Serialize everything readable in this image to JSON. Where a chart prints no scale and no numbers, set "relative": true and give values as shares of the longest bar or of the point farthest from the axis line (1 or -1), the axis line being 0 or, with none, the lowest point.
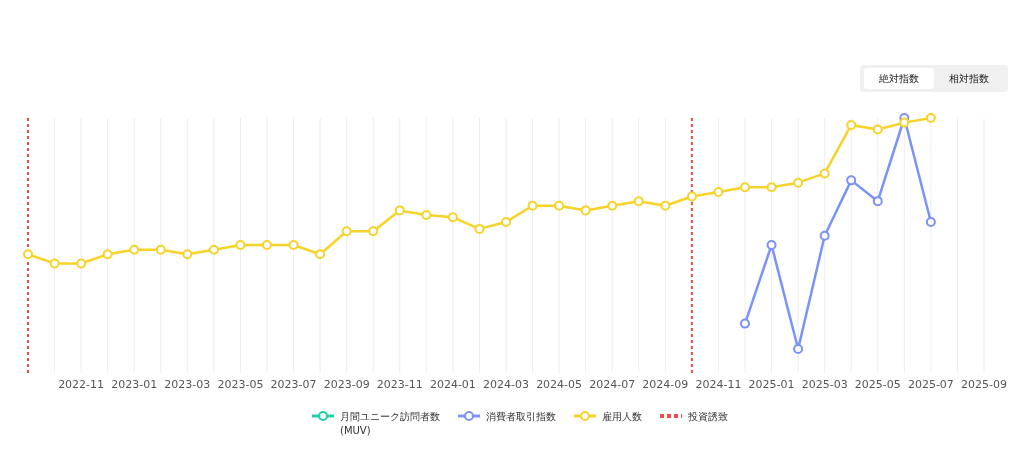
{
  "chart_data": {
    "type": "line",
    "relative": true,
    "marker": "circle",
    "grid": "x",
    "legend": "bottom",
    "tick_labels": "x",
    "x": [
      "2022-09",
      "2022-10",
      "2022-11",
      "2022-12",
      "2023-01",
      "2023-02",
      "2023-03",
      "2023-04",
      "2023-05",
      "2023-06",
      "2023-07",
      "2023-08",
      "2023-09",
      "2023-10",
      "2023-11",
      "2023-12",
      "2024-01",
      "2024-02",
      "2024-03",
      "2024-04",
      "2024-05",
      "2024-06",
      "2024-07",
      "2024-08",
      "2024-09",
      "2024-10",
      "2024-11",
      "2024-12",
      "2025-01",
      "2025-02",
      "2025-03",
      "2025-04",
      "2025-05",
      "2025-06",
      "2025-07"
    ],
    "xlim": [
      "2022-09",
      "2025-09"
    ],
    "xticks": [
      {
        "value": "2022-10",
        "label": null
      },
      "2022-11",
      {
        "value": "2022-12",
        "label": null
      },
      "2023-01",
      {
        "value": "2023-02",
        "label": null
      },
      "2023-03",
      {
        "value": "2023-04",
        "label": null
      },
      "2023-05",
      {
        "value": "2023-06",
        "label": null
      },
      "2023-07",
      {
        "value": "2023-08",
        "label": null
      },
      "2023-09",
      {
        "value": "2023-10",
        "label": null
      },
      "2023-11",
      {
        "value": "2023-12",
        "label": null
      },
      "2024-01",
      {
        "value": "2024-02",
        "label": null
      },
      "2024-03",
      {
        "value": "2024-04",
        "label": null
      },
      "2024-05",
      {
        "value": "2024-06",
        "label": null
      },
      "2024-07",
      {
        "value": "2024-08",
        "label": null
      },
      "2024-09",
      {
        "value": "2024-10",
        "label": null
      },
      "2024-11",
      {
        "value": "2024-12",
        "label": null
      },
      "2025-01",
      {
        "value": "2025-02",
        "label": null
      },
      "2025-03",
      {
        "value": "2025-04",
        "label": null
      },
      "2025-05",
      {
        "value": "2025-06",
        "label": null
      },
      "2025-07",
      {
        "value": "2025-08",
        "label": null
      },
      "2025-09"
    ],
    "series": [
      {
        "name": "月間ユニーク訪問者数\n(MUV)",
        "color": "#1fd1a4",
        "values": [
          null,
          null,
          null,
          null,
          null,
          null,
          null,
          null,
          null,
          null,
          null,
          null,
          null,
          null,
          null,
          null,
          null,
          null,
          null,
          null,
          null,
          null,
          null,
          null,
          null,
          null,
          null,
          null,
          null,
          null,
          null,
          null,
          null,
          null,
          null
        ]
      },
      {
        "name": "消費者取引指数",
        "color": "#7b93f7",
        "values": [
          null,
          null,
          null,
          null,
          null,
          null,
          null,
          null,
          null,
          null,
          null,
          null,
          null,
          null,
          null,
          null,
          null,
          null,
          null,
          null,
          null,
          null,
          null,
          null,
          null,
          null,
          null,
          0.11,
          0.45,
          0,
          0.49,
          0.73,
          0.64,
          1,
          0.55
        ]
      },
      {
        "name": "雇用人数",
        "color": "#f7d32a",
        "values": [
          0.41,
          0.37,
          0.37,
          0.41,
          0.43,
          0.43,
          0.41,
          0.43,
          0.45,
          0.45,
          0.45,
          0.41,
          0.51,
          0.51,
          0.6,
          0.58,
          0.57,
          0.52,
          0.55,
          0.62,
          0.62,
          0.6,
          0.62,
          0.64,
          0.62,
          0.66,
          0.68,
          0.7,
          0.7,
          0.72,
          0.76,
          0.97,
          0.95,
          0.98,
          1
        ]
      }
    ],
    "ref_lines": [
      {
        "axis": "x",
        "value": "2022-09",
        "label": "投資誘致",
        "color": "#f04a4a",
        "line_style": "dotted"
      },
      {
        "axis": "x",
        "value": "2024-10",
        "color": "#f04a4a",
        "line_style": "dotted"
      }
    ],
    "annotations": [
      "絶対指数",
      "相対指数"
    ]
  }
}
